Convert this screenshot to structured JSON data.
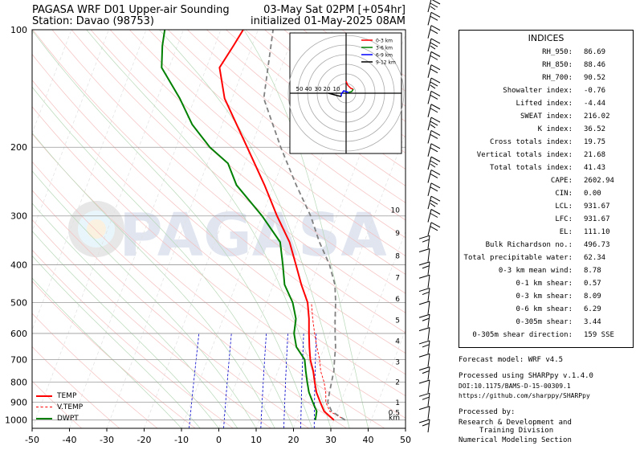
{
  "header": {
    "title_line1": "PAGASA WRF D01 Upper-air Sounding",
    "title_line2": "Station: Davao (98753)",
    "valid_line1": "03-May Sat 02PM [+054hr]",
    "valid_line2": "initialized 01-May-2025 08AM"
  },
  "watermark": "PAGASA",
  "chart_data": {
    "type": "line",
    "title": "",
    "xlabel": "",
    "ylabel": "",
    "xlim": [
      -50,
      50
    ],
    "ylim": [
      1050,
      100
    ],
    "y_scale": "log",
    "x_ticks": [
      "-50",
      "-40",
      "-30",
      "-20",
      "-10",
      "0",
      "10",
      "20",
      "30",
      "40",
      "50"
    ],
    "y_ticks": [
      "100",
      "200",
      "300",
      "400",
      "500",
      "600",
      "700",
      "800",
      "900",
      "1000"
    ],
    "y_tick_values": [
      100,
      200,
      300,
      400,
      500,
      600,
      700,
      800,
      900,
      1000
    ],
    "height_labels": [
      "km",
      "0.5",
      "1",
      "2",
      "3",
      "4",
      "5",
      "6",
      "7",
      "8",
      "9",
      "10"
    ],
    "height_label_pressures": [
      985,
      958,
      903,
      800,
      710,
      628,
      555,
      490,
      432,
      380,
      332,
      290
    ],
    "legend": [
      "TEMP",
      "V.TEMP",
      "DWPT"
    ],
    "legend_location": "lower-left",
    "series": [
      {
        "name": "TEMP",
        "color": "#ff0000",
        "style": "solid",
        "values": [
          [
            1000,
            30.0
          ],
          [
            950,
            26.5
          ],
          [
            900,
            24.5
          ],
          [
            850,
            22.5
          ],
          [
            800,
            21.0
          ],
          [
            750,
            19.5
          ],
          [
            700,
            17.5
          ],
          [
            650,
            16.0
          ],
          [
            600,
            14.5
          ],
          [
            550,
            13.0
          ],
          [
            500,
            11.0
          ],
          [
            450,
            7.5
          ],
          [
            400,
            4.0
          ],
          [
            350,
            0.0
          ],
          [
            300,
            -6.0
          ],
          [
            250,
            -12.5
          ],
          [
            200,
            -21.0
          ],
          [
            150,
            -32.0
          ],
          [
            125,
            -36.5
          ],
          [
            110,
            -35.0
          ],
          [
            100,
            -34.0
          ]
        ]
      },
      {
        "name": "V.TEMP",
        "color": "#ff0000",
        "style": "dashed",
        "values": [
          [
            1000,
            33.0
          ],
          [
            950,
            28.0
          ],
          [
            900,
            26.0
          ],
          [
            850,
            25.0
          ],
          [
            800,
            23.5
          ],
          [
            750,
            21.5
          ],
          [
            700,
            20.0
          ],
          [
            650,
            18.0
          ],
          [
            600,
            16.0
          ],
          [
            550,
            14.0
          ],
          [
            500,
            12.0
          ]
        ]
      },
      {
        "name": "DWPT",
        "color": "#008000",
        "style": "solid",
        "values": [
          [
            1000,
            25.0
          ],
          [
            950,
            24.5
          ],
          [
            900,
            22.5
          ],
          [
            850,
            20.5
          ],
          [
            800,
            19.0
          ],
          [
            750,
            17.5
          ],
          [
            700,
            16.0
          ],
          [
            650,
            12.5
          ],
          [
            600,
            10.5
          ],
          [
            550,
            9.5
          ],
          [
            500,
            7.0
          ],
          [
            450,
            3.0
          ],
          [
            400,
            0.5
          ],
          [
            350,
            -2.5
          ],
          [
            300,
            -10.0
          ],
          [
            250,
            -20.0
          ],
          [
            220,
            -24.5
          ],
          [
            200,
            -31.0
          ],
          [
            175,
            -38.0
          ],
          [
            150,
            -44.0
          ],
          [
            125,
            -52.0
          ],
          [
            110,
            -54.0
          ],
          [
            100,
            -55.0
          ]
        ]
      },
      {
        "name": "parcel",
        "color": "#808080",
        "style": "dashed",
        "values": [
          [
            1000,
            33.0
          ],
          [
            950,
            28.5
          ],
          [
            900,
            26.5
          ],
          [
            850,
            26.0
          ],
          [
            800,
            25.5
          ],
          [
            750,
            25.0
          ],
          [
            700,
            24.0
          ],
          [
            650,
            23.0
          ],
          [
            600,
            21.5
          ],
          [
            550,
            20.0
          ],
          [
            500,
            18.5
          ],
          [
            450,
            16.5
          ],
          [
            400,
            13.0
          ],
          [
            350,
            8.0
          ],
          [
            300,
            3.0
          ],
          [
            250,
            -4.0
          ],
          [
            200,
            -12.0
          ],
          [
            150,
            -21.5
          ],
          [
            100,
            -26.0
          ]
        ]
      }
    ],
    "wind_barb_count": 33
  },
  "hodograph": {
    "legend": [
      "0-3 km",
      "3-6 km",
      "6-9 km",
      "9-12 km"
    ],
    "legend_colors": [
      "#ff0000",
      "#008000",
      "#0000ff",
      "#000000"
    ],
    "ring_labels": [
      "50",
      "40",
      "30",
      "20",
      "10"
    ]
  },
  "indices": {
    "title": "INDICES",
    "rows": [
      {
        "label": "RH_950:",
        "value": "86.69"
      },
      {
        "label": "RH_850:",
        "value": "88.46"
      },
      {
        "label": "RH_700:",
        "value": "90.52"
      },
      {
        "label": "Showalter index:",
        "value": "-0.76"
      },
      {
        "label": "Lifted index:",
        "value": "-4.44"
      },
      {
        "label": "SWEAT index:",
        "value": "216.02"
      },
      {
        "label": "K index:",
        "value": "36.52"
      },
      {
        "label": "Cross totals index:",
        "value": "19.75"
      },
      {
        "label": "Vertical totals index:",
        "value": "21.68"
      },
      {
        "label": "Total totals index:",
        "value": "41.43"
      },
      {
        "label": "CAPE:",
        "value": "2602.94"
      },
      {
        "label": "CIN:",
        "value": "0.00"
      },
      {
        "label": "LCL:",
        "value": "931.67"
      },
      {
        "label": "LFC:",
        "value": "931.67"
      },
      {
        "label": "EL:",
        "value": "111.10"
      },
      {
        "label": "Bulk Richardson no.:",
        "value": "496.73"
      },
      {
        "label": "Total precipitable water:",
        "value": "62.34"
      },
      {
        "label": "0-3 km mean wind:",
        "value": "8.78"
      },
      {
        "label": "0-1 km shear:",
        "value": "0.57"
      },
      {
        "label": "0-3 km shear:",
        "value": "8.09"
      },
      {
        "label": "0-6 km shear:",
        "value": "6.29"
      },
      {
        "label": "0-305m shear:",
        "value": "3.44"
      },
      {
        "label": "0-305m shear direction:",
        "value": "159 SSE"
      }
    ]
  },
  "footer": {
    "model": "Forecast model: WRF v4.5",
    "processed_using": "Processed using SHARPpy v.1.4.0",
    "doi": "DOI:10.1175/BAMS-D-15-00309.1",
    "url": "https://github.com/sharppy/SHARPpy",
    "processed_by": "Processed by:",
    "org_line1": "Research & Development and",
    "org_line2": "Training Division",
    "org_line3": "Numerical Modeling Section"
  }
}
